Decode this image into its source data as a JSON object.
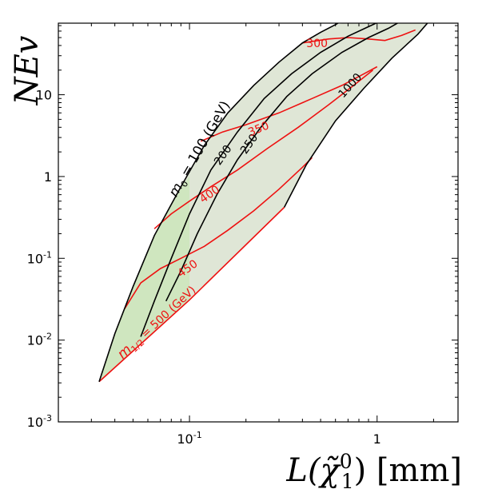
{
  "chart_data": {
    "type": "line",
    "xlabel": "L(χ̃",
    "xlabel_sup": "0",
    "xlabel_sub": "1",
    "xlabel_tail": ") [mm]",
    "ylabel": "NEv",
    "x_scale": "log",
    "y_scale": "log",
    "xlim": [
      0.02,
      2.7
    ],
    "ylim": [
      0.001,
      75
    ],
    "grid": false,
    "x_ticks": [
      {
        "value": 0.1,
        "base": "10",
        "exp": "-1"
      },
      {
        "value": 1,
        "base": "1",
        "exp": ""
      }
    ],
    "y_ticks": [
      {
        "value": 0.001,
        "base": "10",
        "exp": "-3"
      },
      {
        "value": 0.01,
        "base": "10",
        "exp": "-2"
      },
      {
        "value": 0.1,
        "base": "10",
        "exp": "-1"
      },
      {
        "value": 1,
        "base": "1",
        "exp": ""
      },
      {
        "value": 10,
        "base": "10",
        "exp": ""
      }
    ],
    "colors": {
      "m0_curves": "#000000",
      "m12_curves": "#ee1111",
      "region_fill": "#dfe6d6",
      "region_fill_highlight": "#cfe6bf"
    },
    "region_boundary": [
      [
        0.033,
        0.0031
      ],
      [
        0.04,
        0.012
      ],
      [
        0.05,
        0.045
      ],
      [
        0.065,
        0.19
      ],
      [
        0.09,
        0.75
      ],
      [
        0.12,
        2.4
      ],
      [
        0.16,
        6
      ],
      [
        0.22,
        13
      ],
      [
        0.3,
        25
      ],
      [
        0.4,
        43
      ],
      [
        0.5,
        58
      ],
      [
        0.6,
        72
      ],
      [
        0.82,
        80
      ],
      [
        1.3,
        80
      ],
      [
        1.9,
        80
      ],
      [
        1.65,
        55
      ],
      [
        1.2,
        28
      ],
      [
        0.85,
        12
      ],
      [
        0.6,
        4.8
      ],
      [
        0.42,
        1.4
      ],
      [
        0.32,
        0.42
      ],
      [
        0.1,
        0.031
      ],
      [
        0.033,
        0.0031
      ]
    ],
    "highlight_region": [
      [
        0.033,
        0.0031
      ],
      [
        0.04,
        0.012
      ],
      [
        0.05,
        0.045
      ],
      [
        0.065,
        0.19
      ],
      [
        0.09,
        0.75
      ],
      [
        0.1,
        1.0
      ],
      [
        0.1,
        0.031
      ],
      [
        0.033,
        0.0031
      ]
    ],
    "m0_series": [
      {
        "name": "100",
        "points": [
          [
            0.033,
            0.0031
          ],
          [
            0.04,
            0.012
          ],
          [
            0.05,
            0.045
          ],
          [
            0.065,
            0.19
          ],
          [
            0.09,
            0.75
          ],
          [
            0.12,
            2.4
          ],
          [
            0.16,
            6
          ],
          [
            0.22,
            13
          ],
          [
            0.3,
            25
          ],
          [
            0.4,
            43
          ],
          [
            0.5,
            58
          ],
          [
            0.6,
            72
          ],
          [
            0.65,
            80
          ]
        ]
      },
      {
        "name": "200",
        "points": [
          [
            0.055,
            0.011
          ],
          [
            0.065,
            0.03
          ],
          [
            0.08,
            0.1
          ],
          [
            0.1,
            0.35
          ],
          [
            0.13,
            1.2
          ],
          [
            0.18,
            3.5
          ],
          [
            0.25,
            9
          ],
          [
            0.35,
            18
          ],
          [
            0.5,
            33
          ],
          [
            0.7,
            52
          ],
          [
            0.9,
            68
          ],
          [
            1.05,
            80
          ]
        ]
      },
      {
        "name": "250",
        "points": [
          [
            0.075,
            0.03
          ],
          [
            0.09,
            0.07
          ],
          [
            0.11,
            0.2
          ],
          [
            0.14,
            0.6
          ],
          [
            0.18,
            1.6
          ],
          [
            0.24,
            4
          ],
          [
            0.33,
            9.5
          ],
          [
            0.45,
            18
          ],
          [
            0.65,
            33
          ],
          [
            0.9,
            50
          ],
          [
            1.15,
            65
          ],
          [
            1.35,
            80
          ]
        ]
      },
      {
        "name": "1000",
        "points": [
          [
            0.32,
            0.42
          ],
          [
            0.42,
            1.4
          ],
          [
            0.6,
            4.8
          ],
          [
            0.85,
            12
          ],
          [
            1.2,
            28
          ],
          [
            1.65,
            55
          ],
          [
            1.9,
            80
          ]
        ]
      }
    ],
    "m12_series": [
      {
        "name": "300",
        "points": [
          [
            0.4,
            43
          ],
          [
            0.55,
            48
          ],
          [
            0.7,
            50
          ],
          [
            0.9,
            48
          ],
          [
            1.1,
            46
          ],
          [
            1.35,
            53
          ],
          [
            1.6,
            62
          ]
        ]
      },
      {
        "name": "350",
        "points": [
          [
            0.115,
            2.7
          ],
          [
            0.15,
            3.5
          ],
          [
            0.2,
            4.3
          ],
          [
            0.3,
            6
          ],
          [
            0.45,
            9
          ],
          [
            0.65,
            13
          ],
          [
            0.85,
            18
          ],
          [
            1.0,
            22
          ]
        ]
      },
      {
        "name": "400",
        "points": [
          [
            0.065,
            0.23
          ],
          [
            0.08,
            0.35
          ],
          [
            0.1,
            0.5
          ],
          [
            0.13,
            0.75
          ],
          [
            0.18,
            1.2
          ],
          [
            0.26,
            2.2
          ],
          [
            0.38,
            4
          ],
          [
            0.55,
            7.5
          ],
          [
            0.75,
            13
          ],
          [
            0.95,
            20
          ]
        ]
      },
      {
        "name": "450",
        "points": [
          [
            0.045,
            0.024
          ],
          [
            0.055,
            0.05
          ],
          [
            0.07,
            0.075
          ],
          [
            0.09,
            0.1
          ],
          [
            0.12,
            0.14
          ],
          [
            0.16,
            0.22
          ],
          [
            0.22,
            0.38
          ],
          [
            0.3,
            0.7
          ],
          [
            0.4,
            1.3
          ],
          [
            0.45,
            1.7
          ]
        ]
      },
      {
        "name": "500",
        "points": [
          [
            0.033,
            0.0031
          ],
          [
            0.1,
            0.031
          ],
          [
            0.32,
            0.42
          ]
        ]
      }
    ],
    "annotations": [
      {
        "id": "m0-title",
        "text_base": "m",
        "text_sub": "0",
        "text_rest": " = 100 (GeV)",
        "color": "#000000",
        "at": [
          0.085,
          0.55
        ],
        "angle": -60
      },
      {
        "id": "m12-title",
        "text_base": "m",
        "text_sub": "1/2",
        "text_rest": " = 500 (GeV)",
        "color": "#ee1111",
        "at": [
          0.044,
          0.0058
        ],
        "angle": -43
      },
      {
        "id": "lbl-200",
        "text": "200",
        "color": "#000000",
        "at": [
          0.145,
          1.35
        ],
        "angle": -55
      },
      {
        "id": "lbl-250",
        "text": "250",
        "color": "#000000",
        "at": [
          0.2,
          1.85
        ],
        "angle": -55
      },
      {
        "id": "lbl-1000",
        "text": "1000",
        "color": "#000000",
        "at": [
          0.66,
          9.0
        ],
        "angle": -48
      },
      {
        "id": "lbl-300",
        "text": "300",
        "color": "#ee1111",
        "at": [
          0.42,
          38
        ],
        "angle": 0
      },
      {
        "id": "lbl-350",
        "text": "350",
        "color": "#ee1111",
        "at": [
          0.21,
          3.1
        ],
        "angle": -22
      },
      {
        "id": "lbl-400",
        "text": "400",
        "color": "#ee1111",
        "at": [
          0.118,
          0.47
        ],
        "angle": -35
      },
      {
        "id": "lbl-450",
        "text": "450",
        "color": "#ee1111",
        "at": [
          0.09,
          0.058
        ],
        "angle": -35
      }
    ]
  }
}
